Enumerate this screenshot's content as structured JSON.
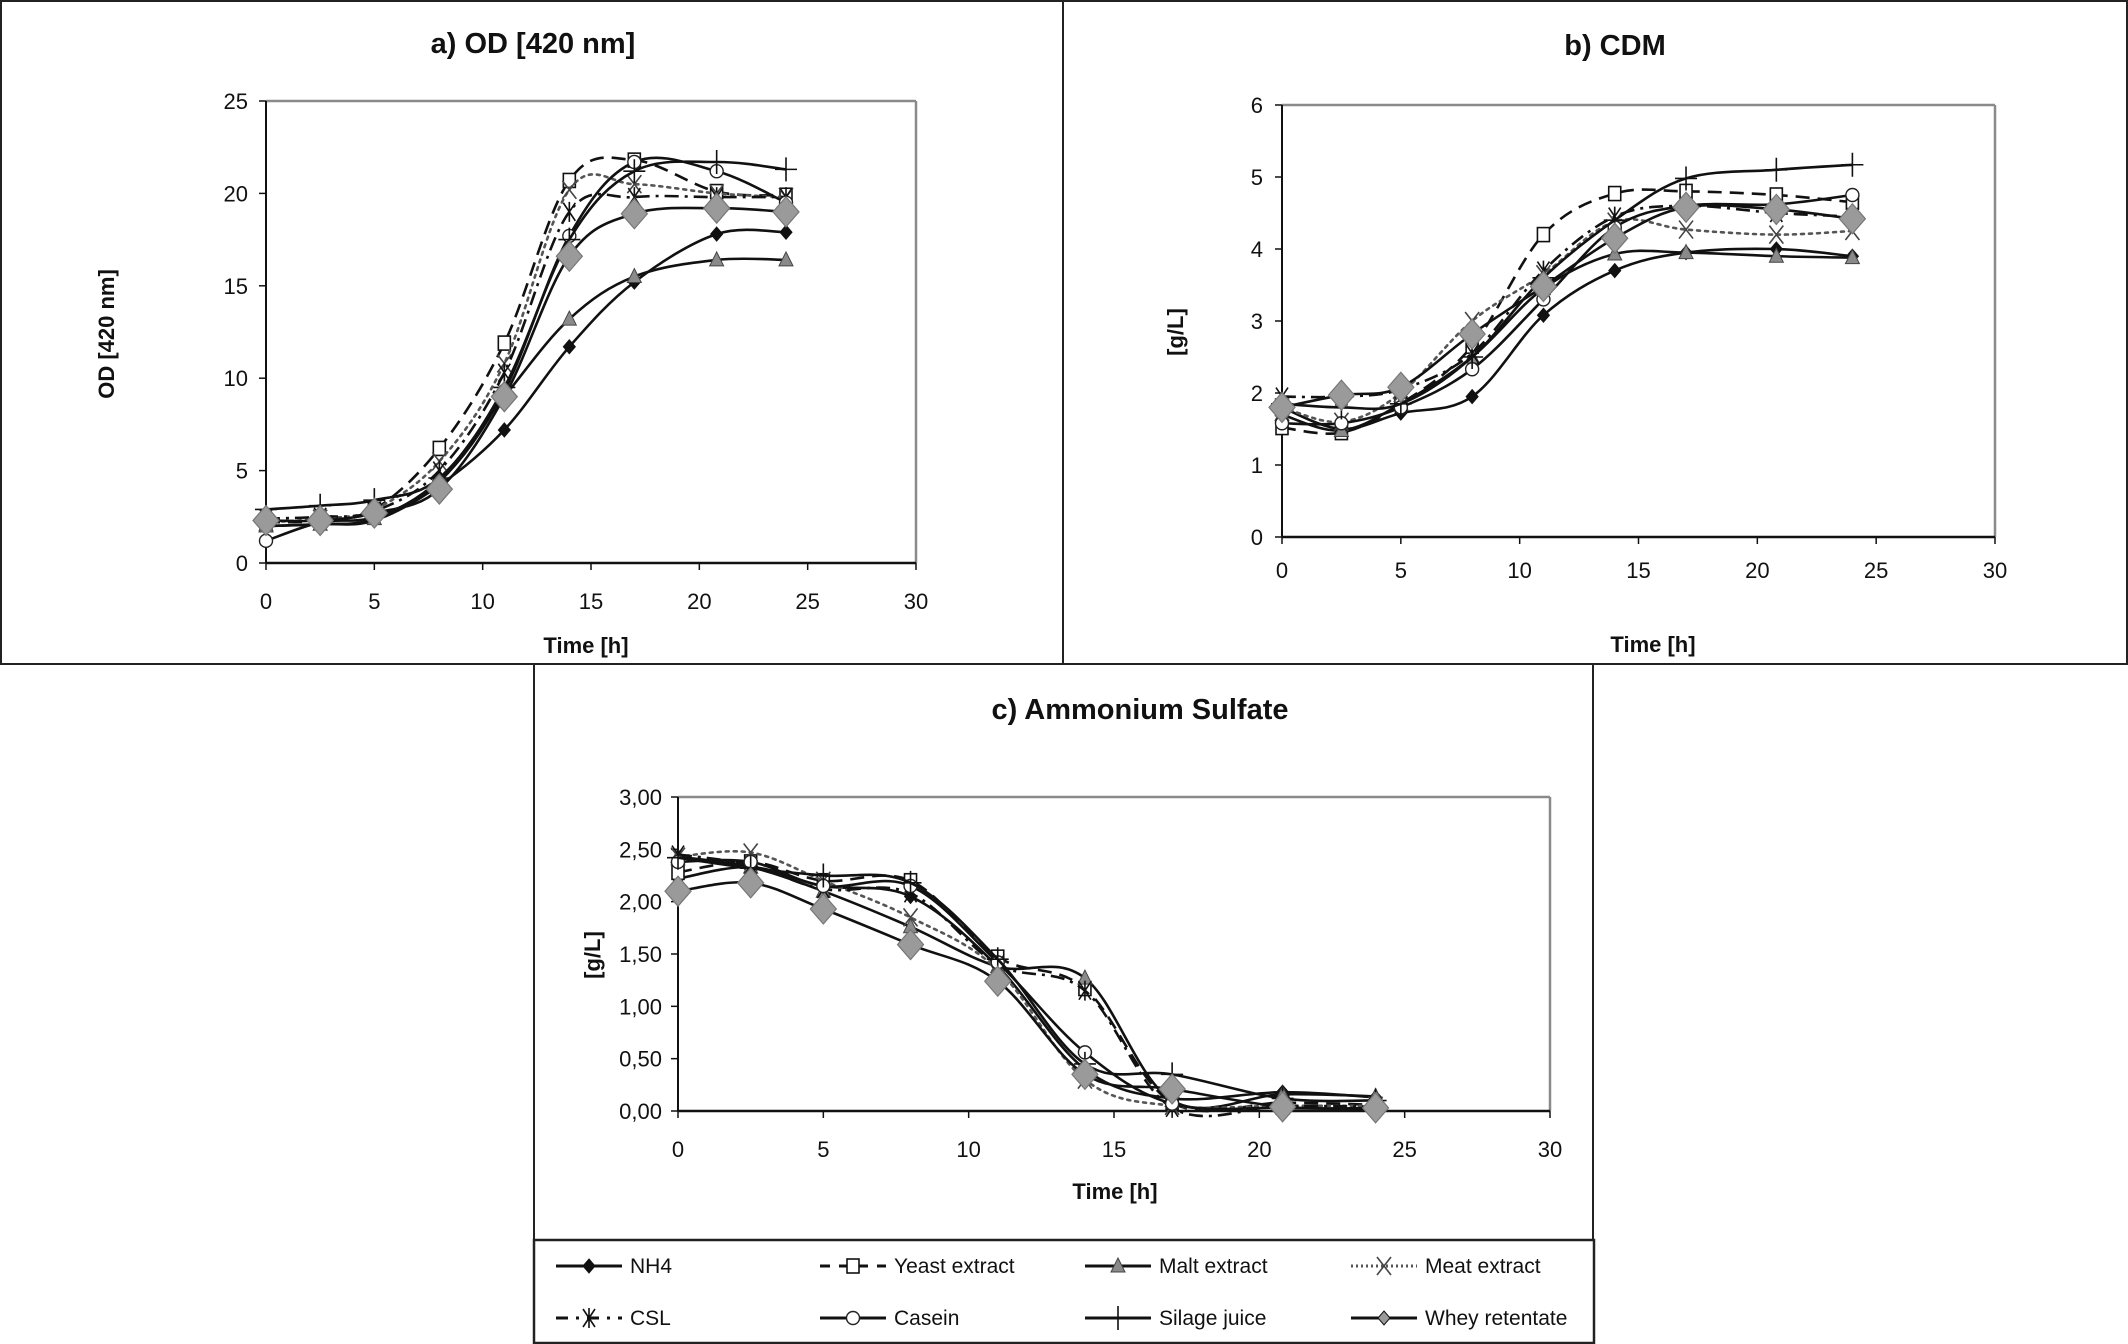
{
  "legend": {
    "items": [
      {
        "label": "NH4",
        "style": "solid",
        "marker": "diamond-small",
        "marker_fill": "#111111",
        "line_color": "#111111"
      },
      {
        "label": "Yeast extract",
        "style": "dashed",
        "marker": "square",
        "marker_fill": "#ffffff",
        "line_color": "#111111"
      },
      {
        "label": "Malt extract",
        "style": "solid",
        "marker": "triangle",
        "marker_fill": "#8a8a8a",
        "line_color": "#111111"
      },
      {
        "label": "Meat extract",
        "style": "dotted",
        "marker": "x",
        "marker_fill": "none",
        "line_color": "#555555"
      },
      {
        "label": "CSL",
        "style": "dashdot",
        "marker": "star",
        "marker_fill": "none",
        "line_color": "#111111"
      },
      {
        "label": "Casein",
        "style": "solid",
        "marker": "circle",
        "marker_fill": "#ffffff",
        "line_color": "#111111"
      },
      {
        "label": "Silage juice",
        "style": "solid",
        "marker": "plus",
        "marker_fill": "none",
        "line_color": "#111111"
      },
      {
        "label": "Whey retentate",
        "style": "solid",
        "marker": "diamond-large",
        "marker_fill": "#9a9a9a",
        "line_color": "#111111"
      }
    ]
  },
  "chart_data": [
    {
      "id": "a",
      "type": "line",
      "title": "a) OD [420 nm]",
      "xlabel": "Time  [h]",
      "ylabel": "OD [420 nm]",
      "xlim": [
        0,
        30
      ],
      "ylim": [
        0,
        25
      ],
      "xticks": [
        "0",
        "5",
        "10",
        "15",
        "20",
        "25",
        "30"
      ],
      "yticks": [
        "0",
        "5",
        "10",
        "15",
        "20",
        "25"
      ],
      "grid": false,
      "legend": "bottom (shared)",
      "x": [
        0,
        2.5,
        5,
        8,
        11,
        14,
        17,
        20.8,
        24
      ],
      "series": [
        {
          "name": "NH4",
          "values": [
            2.0,
            2.1,
            2.3,
            4.2,
            7.2,
            11.7,
            15.2,
            17.8,
            17.9
          ]
        },
        {
          "name": "Yeast extract",
          "values": [
            2.2,
            2.3,
            2.9,
            6.2,
            11.9,
            20.7,
            21.8,
            20.1,
            19.9
          ]
        },
        {
          "name": "Malt extract",
          "values": [
            2.0,
            2.1,
            2.4,
            4.5,
            9.0,
            13.2,
            15.5,
            16.4,
            16.4
          ]
        },
        {
          "name": "Meat extract",
          "values": [
            2.2,
            2.4,
            2.9,
            5.5,
            10.8,
            20.2,
            20.5,
            20.0,
            19.8
          ]
        },
        {
          "name": "CSL",
          "values": [
            2.4,
            2.5,
            2.8,
            5.0,
            10.3,
            19.0,
            19.8,
            19.8,
            19.8
          ]
        },
        {
          "name": "Casein",
          "values": [
            1.2,
            2.2,
            2.5,
            4.4,
            9.3,
            17.7,
            21.7,
            21.2,
            19.5
          ]
        },
        {
          "name": "Silage juice",
          "values": [
            2.9,
            3.1,
            3.4,
            4.6,
            9.5,
            17.5,
            21.2,
            21.7,
            21.3
          ]
        },
        {
          "name": "Whey retentate",
          "values": [
            2.3,
            2.3,
            2.7,
            4.0,
            9.0,
            16.6,
            18.9,
            19.2,
            19.0
          ]
        }
      ]
    },
    {
      "id": "b",
      "type": "line",
      "title": "b) CDM",
      "xlabel": "Time  [h]",
      "ylabel": "[g/L]",
      "xlim": [
        0,
        30
      ],
      "ylim": [
        0,
        6
      ],
      "xticks": [
        "0",
        "5",
        "10",
        "15",
        "20",
        "25",
        "30"
      ],
      "yticks": [
        "0",
        "1",
        "2",
        "3",
        "4",
        "5",
        "6"
      ],
      "grid": false,
      "legend": "bottom (shared)",
      "x": [
        0,
        2.5,
        5,
        8,
        11,
        14,
        17,
        20.8,
        24
      ],
      "series": [
        {
          "name": "NH4",
          "values": [
            1.8,
            1.5,
            1.72,
            1.95,
            3.08,
            3.7,
            3.95,
            4.0,
            3.9
          ]
        },
        {
          "name": "Yeast extract",
          "values": [
            1.52,
            1.45,
            1.85,
            2.65,
            4.2,
            4.77,
            4.8,
            4.75,
            4.65
          ]
        },
        {
          "name": "Malt extract",
          "values": [
            1.7,
            1.48,
            1.85,
            2.5,
            3.45,
            3.93,
            3.95,
            3.9,
            3.88
          ]
        },
        {
          "name": "Meat extract",
          "values": [
            1.8,
            1.6,
            2.0,
            3.0,
            3.65,
            4.38,
            4.27,
            4.2,
            4.25
          ]
        },
        {
          "name": "CSL",
          "values": [
            1.95,
            1.95,
            2.05,
            2.55,
            3.7,
            4.45,
            4.6,
            4.5,
            4.45
          ]
        },
        {
          "name": "Casein",
          "values": [
            1.58,
            1.58,
            1.8,
            2.33,
            3.3,
            4.3,
            4.6,
            4.62,
            4.75
          ]
        },
        {
          "name": "Silage juice",
          "values": [
            1.85,
            1.8,
            1.85,
            2.5,
            3.6,
            4.4,
            4.98,
            5.1,
            5.17
          ]
        },
        {
          "name": "Whey retentate",
          "values": [
            1.8,
            1.97,
            2.08,
            2.82,
            3.48,
            4.15,
            4.58,
            4.55,
            4.42
          ]
        }
      ]
    },
    {
      "id": "c",
      "type": "line",
      "title": "c) Ammonium  Sulfate",
      "xlabel": "Time  [h]",
      "ylabel": "[g/L]",
      "xlim": [
        0,
        30
      ],
      "ylim": [
        0,
        3
      ],
      "xticks": [
        "0",
        "5",
        "10",
        "15",
        "20",
        "25",
        "30"
      ],
      "yticks": [
        "0,00",
        "0,50",
        "1,00",
        "1,50",
        "2,00",
        "2,50",
        "3,00"
      ],
      "grid": false,
      "legend": "bottom",
      "x": [
        0,
        2.5,
        5,
        8,
        11,
        14,
        17,
        20.8,
        24
      ],
      "series": [
        {
          "name": "NH4",
          "values": [
            2.22,
            2.33,
            2.15,
            2.05,
            1.38,
            0.4,
            0.12,
            0.18,
            0.13
          ]
        },
        {
          "name": "Yeast extract",
          "values": [
            2.28,
            2.38,
            2.2,
            2.2,
            1.47,
            1.17,
            0.08,
            0.08,
            0.06
          ]
        },
        {
          "name": "Malt extract",
          "values": [
            2.43,
            2.33,
            2.1,
            1.76,
            1.38,
            1.27,
            0.1,
            0.16,
            0.14
          ]
        },
        {
          "name": "Meat extract",
          "values": [
            2.43,
            2.47,
            2.2,
            1.85,
            1.35,
            0.3,
            0.05,
            0.05,
            0.05
          ]
        },
        {
          "name": "CSL",
          "values": [
            2.45,
            2.35,
            2.12,
            2.08,
            1.4,
            1.15,
            0.03,
            0.05,
            0.04
          ]
        },
        {
          "name": "Casein",
          "values": [
            2.38,
            2.38,
            2.15,
            2.15,
            1.42,
            0.56,
            0.07,
            0.03,
            0.02
          ]
        },
        {
          "name": "Silage juice",
          "values": [
            2.42,
            2.32,
            2.25,
            2.18,
            1.45,
            0.45,
            0.35,
            0.12,
            0.1
          ]
        },
        {
          "name": "Whey retentate",
          "values": [
            2.1,
            2.18,
            1.93,
            1.59,
            1.24,
            0.35,
            0.21,
            0.04,
            0.03
          ]
        }
      ]
    }
  ]
}
